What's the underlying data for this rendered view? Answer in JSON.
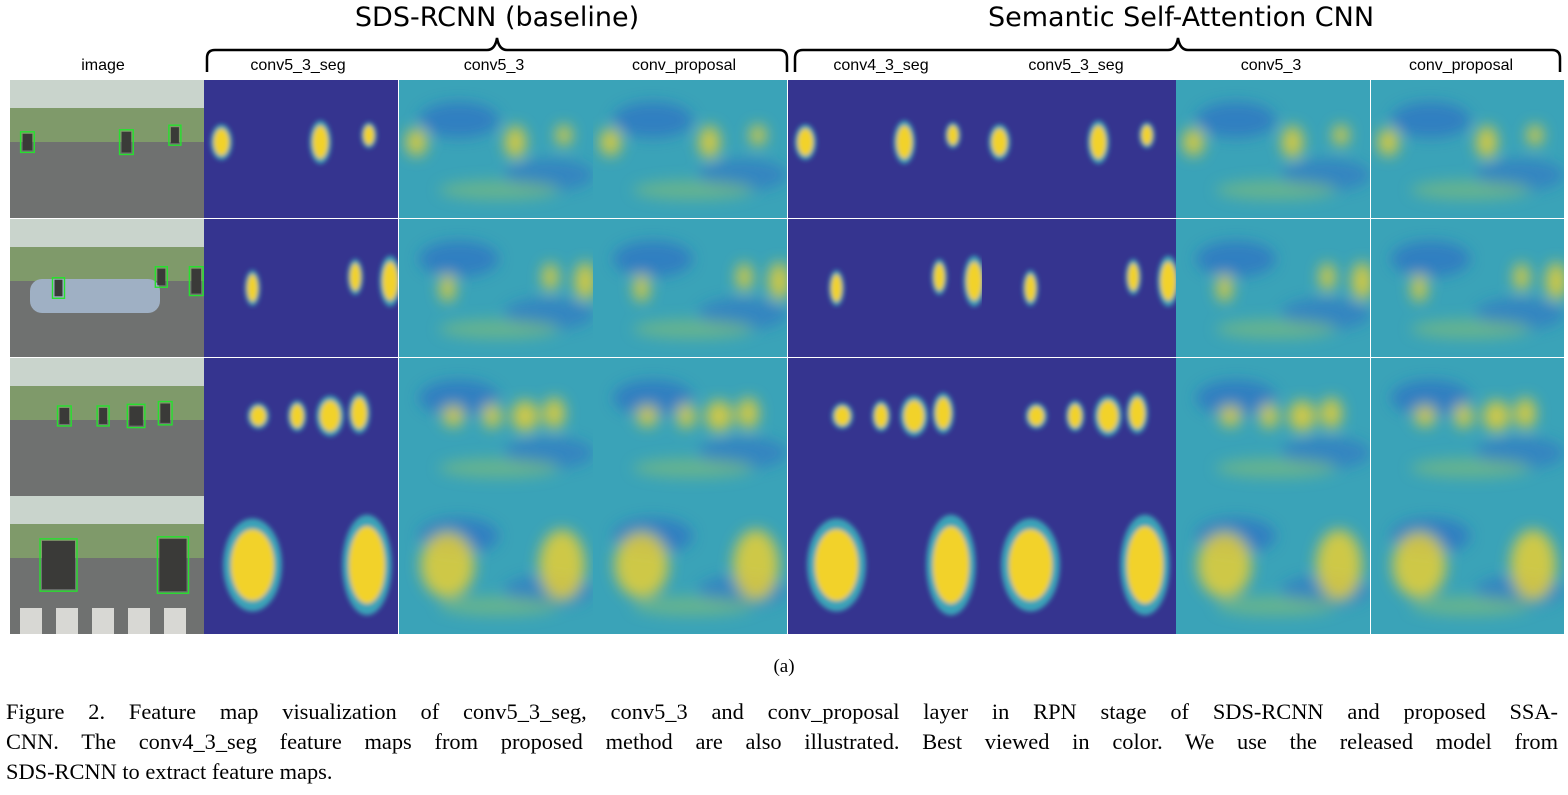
{
  "figure": {
    "group_titles": {
      "baseline": "SDS-RCNN (baseline)",
      "proposed": "Semantic Self-Attention CNN"
    },
    "column_labels": [
      "image",
      "conv5_3_seg",
      "conv5_3",
      "conv_proposal",
      "conv4_3_seg",
      "conv5_3_seg",
      "conv5_3",
      "conv_proposal"
    ],
    "subcaption": "(a)",
    "caption_lines": [
      "Figure 2. Feature map visualization of conv5_3_seg, conv5_3 and conv_proposal layer in RPN stage of SDS-RCNN and proposed SSA-",
      "CNN. The conv4_3_seg feature maps from proposed method are also illustrated. Best viewed in color. We use the released model from",
      "SDS-RCNN to extract feature maps."
    ],
    "colors": {
      "seg_background": "#35348f",
      "heat_low": "#2b61c9",
      "heat_mid": "#3aa3b8",
      "heat_high": "#f2d22a",
      "box_green": "#27e02f"
    }
  }
}
